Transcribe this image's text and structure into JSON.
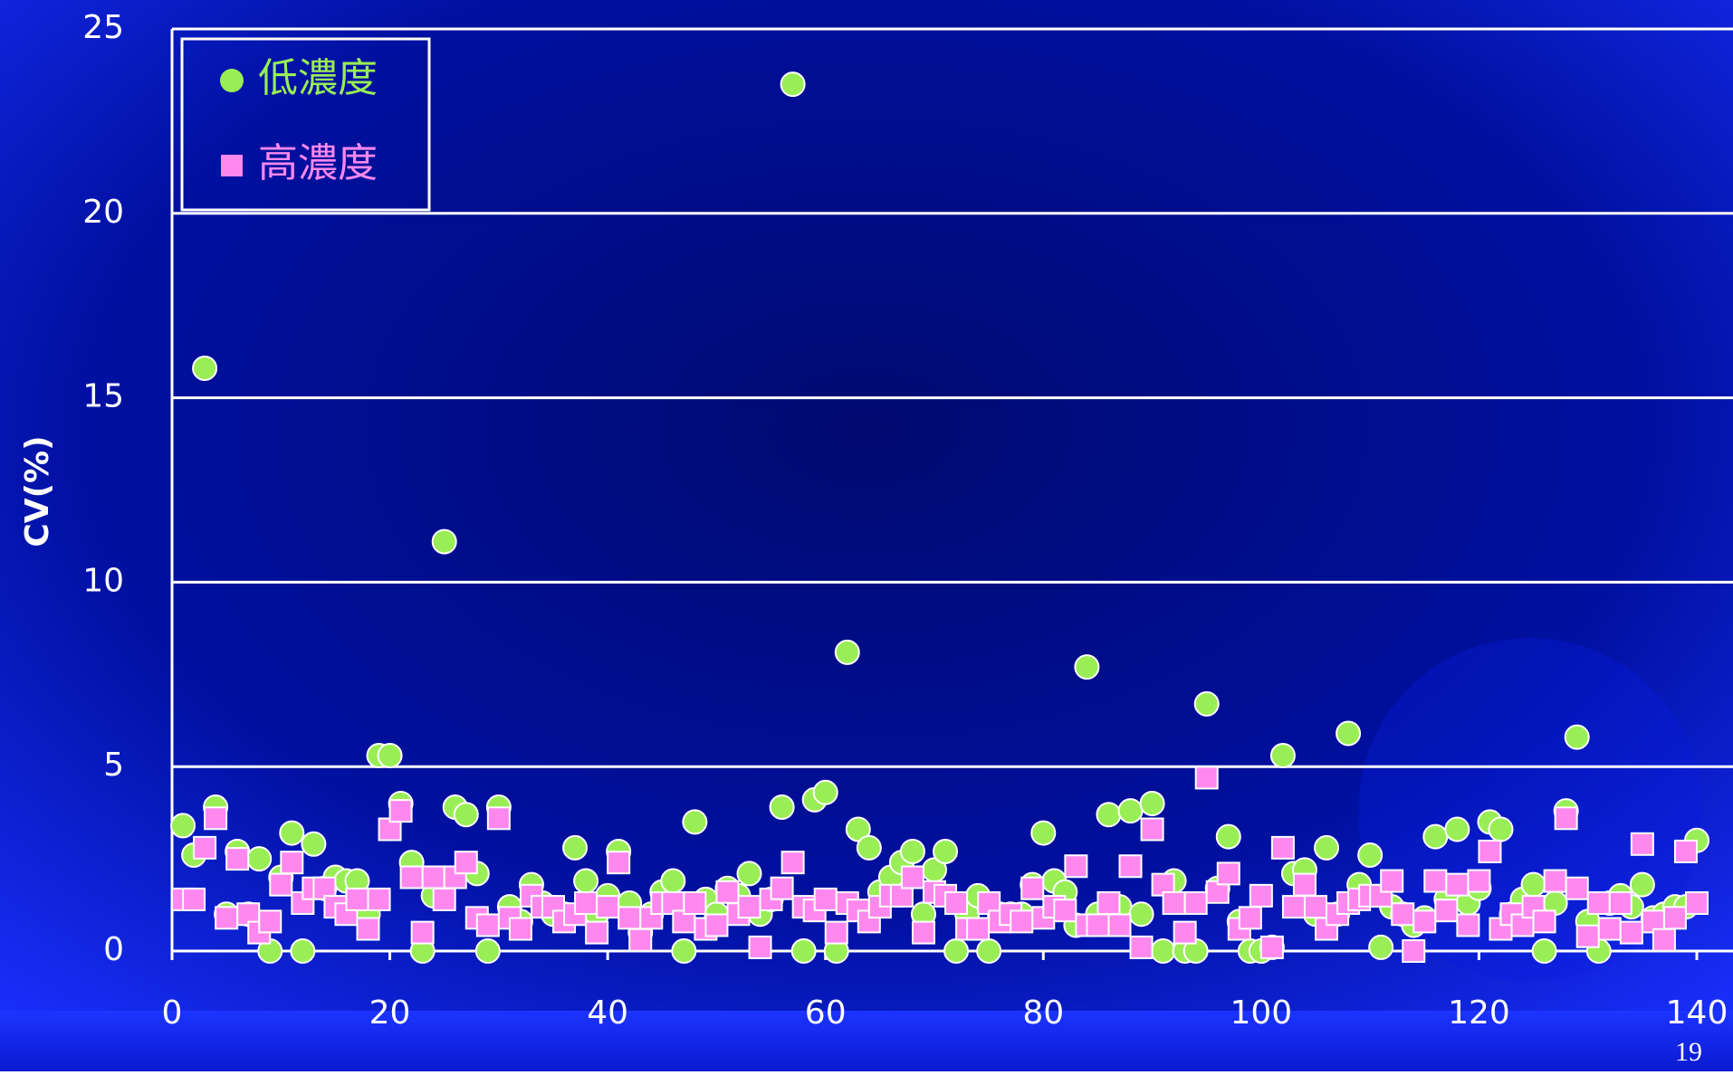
{
  "chart_data": {
    "type": "scatter",
    "ylabel": "CV(%)",
    "x": [
      1,
      2,
      3,
      4,
      5,
      6,
      7,
      8,
      9,
      10,
      11,
      12,
      13,
      14,
      15,
      16,
      17,
      18,
      19,
      20,
      21,
      22,
      23,
      24,
      25,
      26,
      27,
      28,
      29,
      30,
      31,
      32,
      33,
      34,
      35,
      36,
      37,
      38,
      39,
      40,
      41,
      42,
      43,
      44,
      45,
      46,
      47,
      48,
      49,
      50,
      51,
      52,
      53,
      54,
      55,
      56,
      57,
      58,
      59,
      60,
      61,
      62,
      63,
      64,
      65,
      66,
      67,
      68,
      69,
      70,
      71,
      72,
      73,
      74,
      75,
      76,
      77,
      78,
      79,
      80,
      81,
      82,
      83,
      84,
      85,
      86,
      87,
      88,
      89,
      90,
      91,
      92,
      93,
      94,
      95,
      96,
      97,
      98,
      99,
      100,
      101,
      102,
      103,
      104,
      105,
      106,
      107,
      108,
      109,
      110,
      111,
      112,
      113,
      114,
      115,
      116,
      117,
      118,
      119,
      120,
      121,
      122,
      123,
      124,
      125,
      126,
      127,
      128,
      129,
      130,
      131,
      132,
      133,
      134,
      135,
      136,
      137,
      138,
      139,
      140
    ],
    "series": [
      {
        "name": "低濃度",
        "color": "#99ee55",
        "marker": "circle",
        "values": [
          3.4,
          2.6,
          15.8,
          3.9,
          1.0,
          2.7,
          1.0,
          2.5,
          0,
          2.0,
          3.2,
          0,
          2.9,
          1.7,
          2.0,
          1.9,
          1.9,
          1.0,
          5.3,
          5.3,
          4.0,
          2.4,
          0,
          1.5,
          11.1,
          3.9,
          3.7,
          2.1,
          0,
          3.9,
          1.2,
          0.8,
          1.8,
          1.3,
          1.0,
          1.0,
          2.8,
          1.9,
          1.0,
          1.5,
          2.7,
          1.3,
          0.5,
          1.0,
          1.6,
          1.9,
          0,
          3.5,
          1.4,
          1.0,
          1.7,
          1.5,
          2.1,
          1.0,
          1.4,
          3.9,
          23.5,
          0,
          4.1,
          4.3,
          0,
          8.1,
          3.3,
          2.8,
          1.6,
          2.0,
          2.4,
          2.7,
          1.0,
          2.2,
          2.7,
          0,
          1.0,
          1.5,
          0,
          1.0,
          1.0,
          1.0,
          1.8,
          3.2,
          1.9,
          1.6,
          0.7,
          7.7,
          1.0,
          3.7,
          1.2,
          3.8,
          1.0,
          4.0,
          0,
          1.9,
          0,
          0,
          6.7,
          1.7,
          3.1,
          0.8,
          0,
          0,
          0.1,
          5.3,
          2.1,
          2.2,
          1.0,
          2.8,
          1.0,
          5.9,
          1.8,
          2.6,
          0.1,
          1.2,
          1.0,
          0.7,
          0.9,
          3.1,
          1.4,
          3.3,
          1.3,
          1.7,
          3.5,
          3.3,
          1.0,
          1.4,
          1.8,
          0,
          1.3,
          3.8,
          5.8,
          0.8,
          0,
          1.3,
          1.5,
          1.2,
          1.8,
          0.9,
          1.0,
          1.2,
          1.2,
          3.0
        ]
      },
      {
        "name": "高濃度",
        "color": "#ff88ee",
        "marker": "square",
        "values": [
          1.4,
          1.4,
          2.8,
          3.6,
          0.9,
          2.5,
          1.0,
          0.5,
          0.8,
          1.8,
          2.4,
          1.3,
          1.7,
          1.7,
          1.2,
          1.0,
          1.4,
          0.6,
          1.4,
          3.3,
          3.8,
          2.0,
          0.5,
          2.0,
          1.4,
          2.0,
          2.4,
          0.9,
          0.7,
          3.6,
          0.9,
          0.6,
          1.5,
          1.2,
          1.2,
          0.8,
          1.0,
          1.3,
          0.5,
          1.2,
          2.4,
          0.9,
          0.3,
          0.9,
          1.3,
          1.3,
          0.8,
          1.3,
          0.6,
          0.7,
          1.6,
          1.0,
          1.2,
          0.1,
          1.4,
          1.7,
          2.4,
          1.2,
          1.1,
          1.4,
          0.5,
          1.3,
          1.1,
          0.8,
          1.2,
          1.5,
          1.5,
          2.0,
          0.5,
          1.6,
          1.5,
          1.3,
          0.6,
          0.6,
          1.3,
          0.8,
          1.0,
          0.8,
          1.7,
          0.9,
          1.2,
          1.1,
          2.3,
          0.7,
          0.7,
          1.3,
          0.7,
          2.3,
          0.1,
          3.3,
          1.8,
          1.3,
          0.5,
          1.3,
          4.7,
          1.6,
          2.1,
          0.6,
          0.9,
          1.5,
          0.1,
          2.8,
          1.2,
          1.8,
          1.2,
          0.6,
          1.0,
          1.3,
          1.4,
          1.5,
          1.5,
          1.9,
          1.0,
          0,
          0.8,
          1.9,
          1.1,
          1.8,
          0.7,
          1.9,
          2.7,
          0.6,
          1.0,
          0.7,
          1.2,
          0.8,
          1.9,
          3.6,
          1.7,
          0.4,
          1.3,
          0.6,
          1.3,
          0.5,
          2.9,
          0.8,
          0.3,
          0.9,
          2.7,
          1.3
        ]
      }
    ],
    "xlim": [
      0,
      140
    ],
    "xticks": [
      0,
      20,
      40,
      60,
      80,
      100,
      120,
      140
    ],
    "ylim": [
      0,
      25
    ],
    "yticks": [
      0,
      5,
      10,
      15,
      20,
      25
    ],
    "grid": true,
    "legend": "upper left"
  },
  "page_number": "19"
}
